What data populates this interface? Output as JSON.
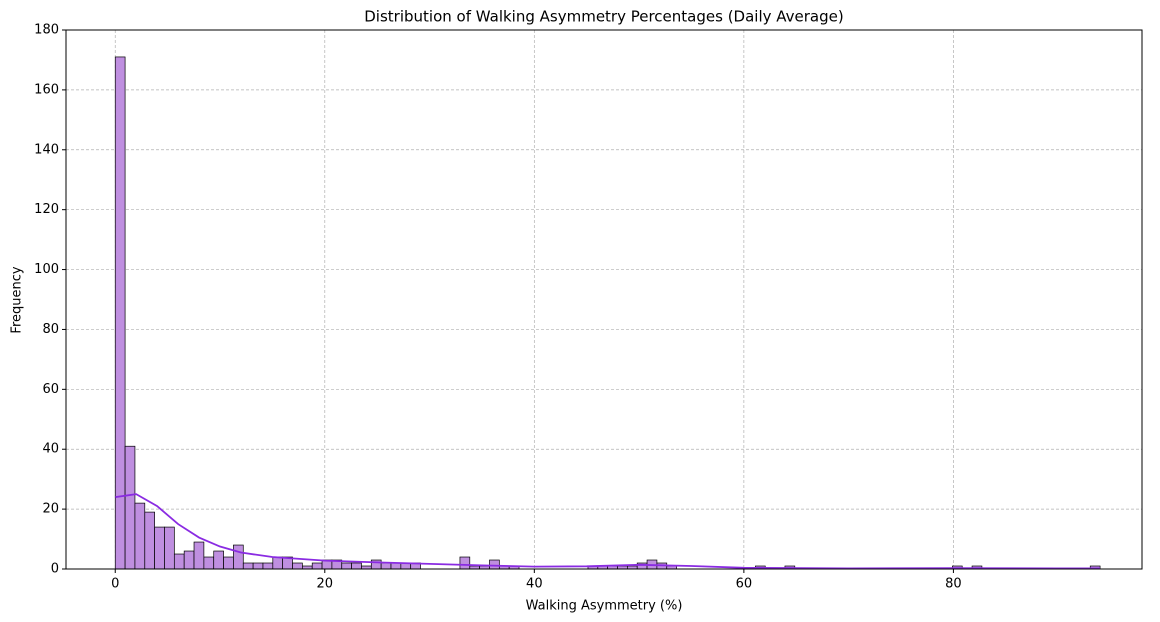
{
  "chart_data": {
    "type": "histogram",
    "title": "Distribution of Walking Asymmetry Percentages (Daily Average)",
    "x_label": "Walking Asymmetry (%)",
    "y_label": "Frequency",
    "bins": [
      0,
      0.94,
      1.88,
      2.82,
      3.76,
      4.7,
      5.64,
      6.58,
      7.52,
      8.46,
      9.4,
      10.34,
      11.28,
      12.22,
      13.16,
      14.1,
      15.04,
      15.98,
      16.92,
      17.86,
      18.8,
      19.74,
      20.68,
      21.62,
      22.56,
      23.5,
      24.44,
      25.38,
      26.32,
      27.26,
      28.2,
      29.14,
      30.08,
      31.02,
      31.96,
      32.9,
      33.84,
      34.78,
      35.72,
      36.66,
      37.6,
      38.54,
      39.48,
      40.42,
      41.36,
      42.3,
      43.24,
      44.18,
      45.12,
      46.06,
      47,
      47.94,
      48.88,
      49.82,
      50.76,
      51.7,
      52.64,
      53.58,
      54.52,
      55.46,
      56.4,
      57.34,
      58.28,
      59.22,
      60.16,
      61.1,
      62.04,
      62.98,
      63.92,
      64.86,
      65.8,
      66.74,
      67.68,
      68.62,
      69.56,
      70.5,
      71.44,
      72.38,
      73.32,
      74.26,
      75.2,
      76.14,
      77.08,
      78.02,
      78.96,
      79.9,
      80.84,
      81.78,
      82.72,
      83.66,
      84.6,
      85.54,
      86.48,
      87.42,
      88.36,
      89.3,
      90.24,
      91.18,
      92.12,
      93.06,
      94
    ],
    "values": [
      171,
      41,
      22,
      19,
      14,
      14,
      5,
      6,
      9,
      4,
      6,
      4,
      8,
      2,
      2,
      2,
      4,
      4,
      2,
      1,
      2,
      3,
      3,
      2,
      2,
      1,
      3,
      2,
      2,
      2,
      2,
      0,
      0,
      0,
      0,
      4,
      1,
      1,
      3,
      1,
      1,
      0,
      0,
      0,
      0,
      0,
      0,
      0,
      1,
      1,
      1,
      1,
      1,
      2,
      3,
      2,
      1,
      0,
      0,
      0,
      0,
      0,
      0,
      0,
      0,
      1,
      0,
      0,
      1,
      0,
      0,
      0,
      0,
      0,
      0,
      0,
      0,
      0,
      0,
      0,
      0,
      0,
      0,
      0,
      0,
      1,
      0,
      1,
      0,
      0,
      0,
      0,
      0,
      0,
      0,
      0,
      0,
      0,
      0,
      1
    ],
    "color": "#bf8fe0",
    "edge_color": "#000000",
    "kde": {
      "color": "#8a2be2",
      "x": [
        0,
        2,
        4,
        6,
        8,
        10,
        12,
        15,
        20,
        25,
        30,
        35,
        40,
        45,
        50,
        55,
        60,
        70,
        80,
        90,
        94
      ],
      "values": [
        24,
        25,
        21,
        15,
        10.5,
        7.5,
        5.5,
        4,
        2.8,
        2.2,
        1.7,
        1.2,
        0.8,
        0.9,
        1.4,
        1,
        0.4,
        0.2,
        0.3,
        0.2,
        0.2
      ]
    },
    "xlim": [
      -4.7,
      98
    ],
    "ylim": [
      0,
      180
    ],
    "xticks": [
      0,
      20,
      40,
      60,
      80
    ],
    "yticks": [
      0,
      20,
      40,
      60,
      80,
      100,
      120,
      140,
      160,
      180
    ],
    "grid": true
  }
}
